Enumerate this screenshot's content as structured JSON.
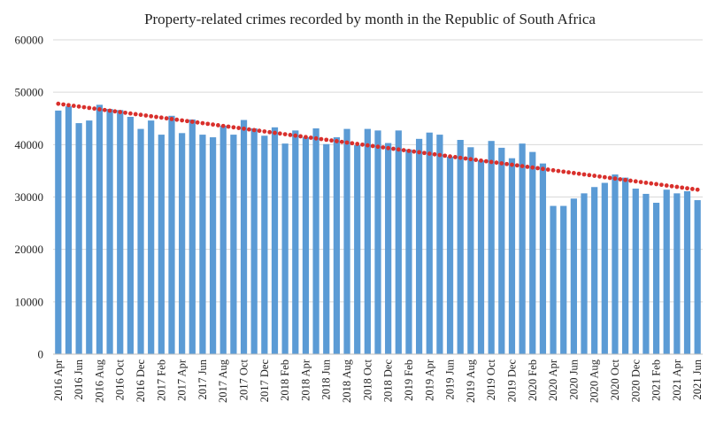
{
  "chart_data": {
    "type": "bar",
    "title": "Property-related crimes recorded by month in the Republic of South Africa",
    "xlabel": "",
    "ylabel": "",
    "ylim": [
      0,
      60000
    ],
    "yticks": [
      "0",
      "10000",
      "20000",
      "30000",
      "40000",
      "50000",
      "60000"
    ],
    "grid": true,
    "legend": "none",
    "colors": {
      "bar": "#5B9BD5",
      "trend": "#D9302C"
    },
    "categories": [
      "2016 Apr",
      "2016 May",
      "2016 Jun",
      "2016 Jul",
      "2016 Aug",
      "2016 Sep",
      "2016 Oct",
      "2016 Nov",
      "2016 Dec",
      "2017 Jan",
      "2017 Feb",
      "2017 Mar",
      "2017 Apr",
      "2017 May",
      "2017 Jun",
      "2017 Jul",
      "2017 Aug",
      "2017 Sep",
      "2017 Oct",
      "2017 Nov",
      "2017 Dec",
      "2018 Jan",
      "2018 Feb",
      "2018 Mar",
      "2018 Apr",
      "2018 May",
      "2018 Jun",
      "2018 Jul",
      "2018 Aug",
      "2018 Sep",
      "2018 Oct",
      "2018 Nov",
      "2018 Dec",
      "2019 Jan",
      "2019 Feb",
      "2019 Mar",
      "2019 Apr",
      "2019 May",
      "2019 Jun",
      "2019 Jul",
      "2019 Aug",
      "2019 Sep",
      "2019 Oct",
      "2019 Nov",
      "2019 Dec",
      "2020 Jan",
      "2020 Feb",
      "2020 Mar",
      "2020 Apr",
      "2020 May",
      "2020 Jun",
      "2020 Jul",
      "2020 Aug",
      "2020 Sep",
      "2020 Oct",
      "2020 Nov",
      "2020 Dec",
      "2021 Jan",
      "2021 Feb",
      "2021 Mar",
      "2021 Apr",
      "2021 May",
      "2021 Jun"
    ],
    "xtick_labels": [
      "2016 Apr",
      "2016 Jun",
      "2016 Aug",
      "2016 Oct",
      "2016 Dec",
      "2017 Feb",
      "2017 Apr",
      "2017 Jun",
      "2017 Aug",
      "2017 Oct",
      "2017 Dec",
      "2018 Feb",
      "2018 Apr",
      "2018 Jun",
      "2018 Aug",
      "2018 Oct",
      "2018 Dec",
      "2019 Feb",
      "2019 Apr",
      "2019 Jun",
      "2019 Aug",
      "2019 Oct",
      "2019 Dec",
      "2020 Feb",
      "2020 Apr",
      "2020 Jun",
      "2020 Aug",
      "2020 Oct",
      "2020 Dec",
      "2021 Feb",
      "2021 Apr",
      "2021 Jun"
    ],
    "series": [
      {
        "values": [
          46500,
          47300,
          44100,
          44600,
          47600,
          46800,
          46600,
          45300,
          43000,
          44600,
          41900,
          45500,
          42200,
          44800,
          41900,
          41400,
          43600,
          41900,
          44700,
          43100,
          41700,
          43300,
          40200,
          42700,
          41400,
          43100,
          40100,
          41400,
          43000,
          39900,
          43000,
          42700,
          40300,
          42700,
          39100,
          41100,
          42300,
          41900,
          37700,
          40900,
          39500,
          37000,
          40700,
          39400,
          37400,
          40200,
          38600,
          36400,
          28300,
          28300,
          29700,
          30700,
          31900,
          32700,
          34300,
          33700,
          31600,
          30600,
          28900,
          31400,
          30700,
          31100,
          29400
        ]
      }
    ],
    "trendline": {
      "type": "linear",
      "start": 47800,
      "end": 31400
    }
  }
}
